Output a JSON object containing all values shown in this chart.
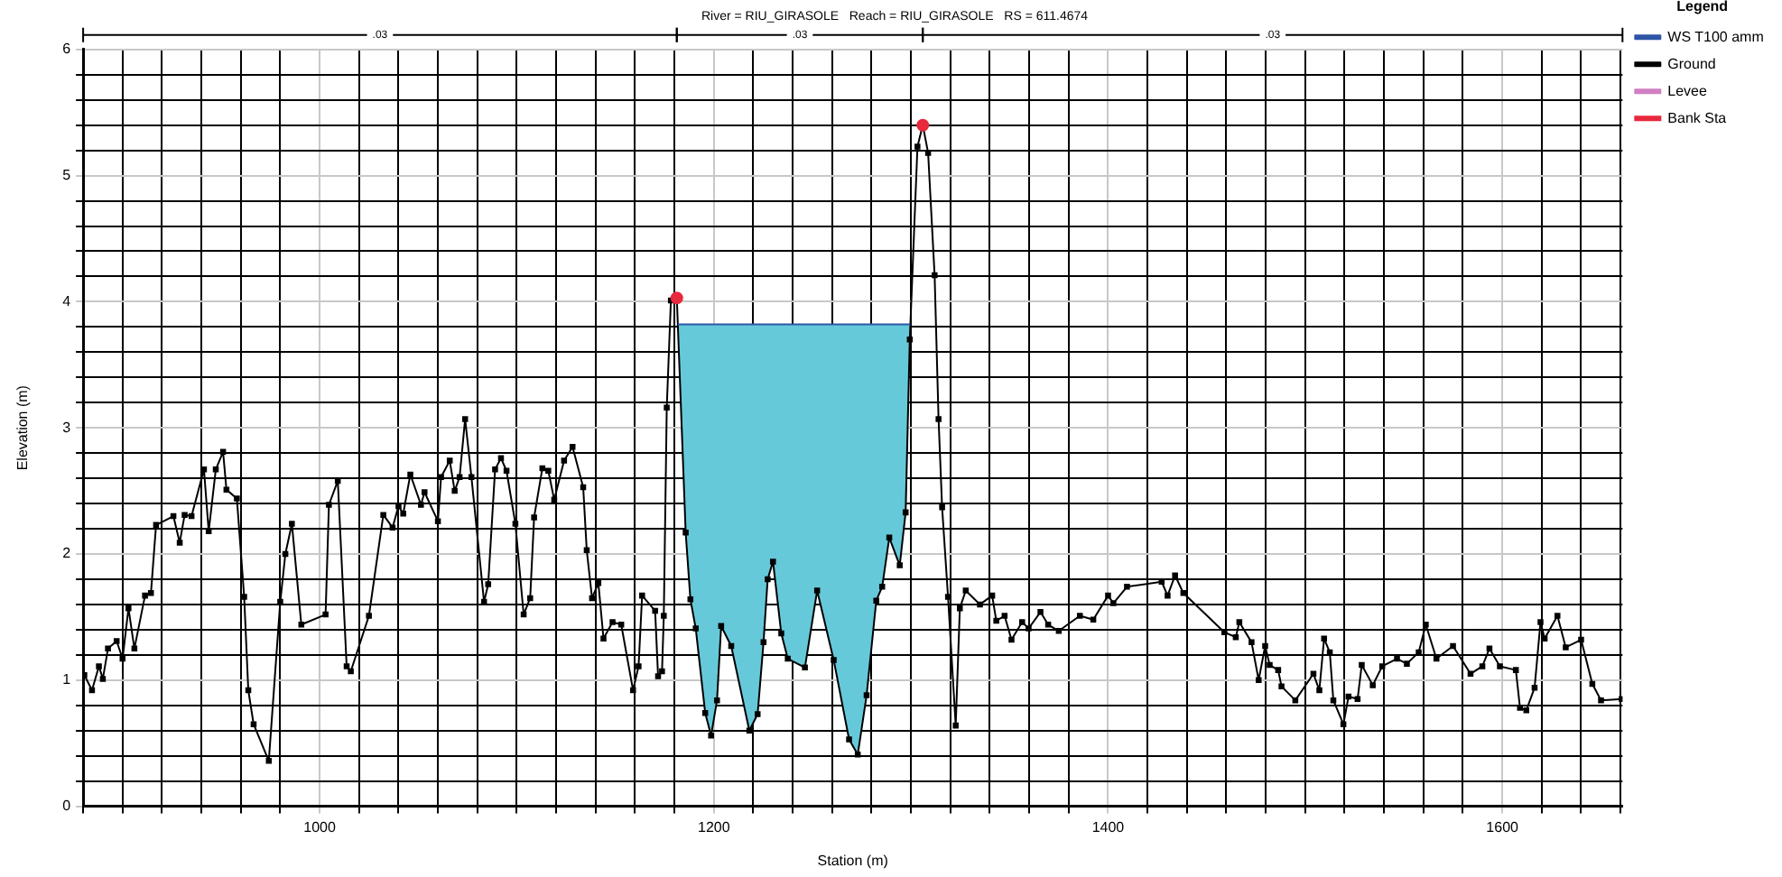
{
  "chart_data": {
    "type": "line",
    "title": "River = RIU_GIRASOLE   Reach = RIU_GIRASOLE   RS = 611.4674",
    "xlabel": "Station (m)",
    "ylabel": "Elevation (m)",
    "legend_title": "Legend",
    "legend": "right",
    "grid": true,
    "xlim": [
      880,
      1661
    ],
    "ylim": [
      0,
      6
    ],
    "xticks": [
      {
        "value": 880,
        "label": null
      },
      {
        "value": 900,
        "label": null
      },
      {
        "value": 920,
        "label": null
      },
      {
        "value": 940,
        "label": null
      },
      {
        "value": 960,
        "label": null
      },
      {
        "value": 980,
        "label": null
      },
      1000,
      {
        "value": 1020,
        "label": null
      },
      {
        "value": 1040,
        "label": null
      },
      {
        "value": 1060,
        "label": null
      },
      {
        "value": 1080,
        "label": null
      },
      {
        "value": 1100,
        "label": null
      },
      {
        "value": 1120,
        "label": null
      },
      {
        "value": 1140,
        "label": null
      },
      {
        "value": 1160,
        "label": null
      },
      {
        "value": 1180,
        "label": null
      },
      1200,
      {
        "value": 1220,
        "label": null
      },
      {
        "value": 1240,
        "label": null
      },
      {
        "value": 1260,
        "label": null
      },
      {
        "value": 1280,
        "label": null
      },
      {
        "value": 1300,
        "label": null
      },
      {
        "value": 1320,
        "label": null
      },
      {
        "value": 1340,
        "label": null
      },
      {
        "value": 1360,
        "label": null
      },
      {
        "value": 1380,
        "label": null
      },
      1400,
      {
        "value": 1420,
        "label": null
      },
      {
        "value": 1440,
        "label": null
      },
      {
        "value": 1460,
        "label": null
      },
      {
        "value": 1480,
        "label": null
      },
      {
        "value": 1500,
        "label": null
      },
      {
        "value": 1520,
        "label": null
      },
      {
        "value": 1540,
        "label": null
      },
      {
        "value": 1560,
        "label": null
      },
      {
        "value": 1580,
        "label": null
      },
      1600,
      {
        "value": 1620,
        "label": null
      },
      {
        "value": 1640,
        "label": null
      },
      {
        "value": 1660,
        "label": null
      }
    ],
    "yticks": [
      0,
      {
        "value": 0.2,
        "label": null
      },
      {
        "value": 0.4,
        "label": null
      },
      {
        "value": 0.6,
        "label": null
      },
      {
        "value": 0.8,
        "label": null
      },
      1,
      {
        "value": 1.2,
        "label": null
      },
      {
        "value": 1.4,
        "label": null
      },
      {
        "value": 1.6,
        "label": null
      },
      {
        "value": 1.8,
        "label": null
      },
      2,
      {
        "value": 2.2,
        "label": null
      },
      {
        "value": 2.4,
        "label": null
      },
      {
        "value": 2.6,
        "label": null
      },
      {
        "value": 2.8,
        "label": null
      },
      3,
      {
        "value": 3.2,
        "label": null
      },
      {
        "value": 3.4,
        "label": null
      },
      {
        "value": 3.6,
        "label": null
      },
      {
        "value": 3.8,
        "label": null
      },
      4,
      {
        "value": 4.2,
        "label": null
      },
      {
        "value": 4.4,
        "label": null
      },
      {
        "value": 4.6,
        "label": null
      },
      {
        "value": 4.8,
        "label": null
      },
      5,
      {
        "value": 5.2,
        "label": null
      },
      {
        "value": 5.4,
        "label": null
      },
      {
        "value": 5.6,
        "label": null
      },
      {
        "value": 5.8,
        "label": null
      },
      6
    ],
    "annotations": [
      ".03",
      ".03",
      ".03"
    ],
    "series": [
      {
        "name": "WS T100 amm",
        "type": "line",
        "marker": "none",
        "color": "#2e56a6",
        "x": [
          1181.7,
          1185.7,
          1188.1,
          1190.8,
          1195.6,
          1198.6,
          1201.6,
          1203.7,
          1208.8,
          1218,
          1222.2,
          1225.2,
          1227.3,
          1230,
          1234.2,
          1237.5,
          1246.2,
          1252.4,
          1260.8,
          1268.6,
          1273,
          1277.5,
          1282.4,
          1285.4,
          1289,
          1294.3,
          1297.3,
          1299.4,
          1299.7
        ],
        "values": [
          3.82,
          3.82,
          3.82,
          3.82,
          3.82,
          3.82,
          3.82,
          3.82,
          3.82,
          3.82,
          3.82,
          3.82,
          3.82,
          3.82,
          3.82,
          3.82,
          3.82,
          3.82,
          3.82,
          3.82,
          3.82,
          3.82,
          3.82,
          3.82,
          3.82,
          3.82,
          3.82,
          3.82,
          3.82
        ],
        "upper": [
          3.82,
          3.82,
          3.82,
          3.82,
          3.82,
          3.82,
          3.82,
          3.82,
          3.82,
          3.82,
          3.82,
          3.82,
          3.82,
          3.82,
          3.82,
          3.82,
          3.82,
          3.82,
          3.82,
          3.82,
          3.82,
          3.82,
          3.82,
          3.82,
          3.82,
          3.82,
          3.82,
          3.82,
          3.82
        ],
        "lower": [
          3.82,
          2.17,
          1.64,
          1.41,
          0.74,
          0.56,
          0.84,
          1.43,
          1.27,
          0.6,
          0.73,
          1.3,
          1.8,
          1.94,
          1.37,
          1.17,
          1.1,
          1.71,
          1.16,
          0.53,
          0.41,
          0.88,
          1.63,
          1.74,
          2.13,
          1.91,
          2.33,
          3.7,
          3.82
        ]
      },
      {
        "name": "Ground",
        "type": "line",
        "marker": "square",
        "color": "#000000",
        "x": [
          880.6,
          884.5,
          888,
          890,
          892.6,
          897,
          900,
          903,
          906,
          911.4,
          914.4,
          917,
          925.8,
          929,
          931.5,
          935,
          941.3,
          943.7,
          947.3,
          951,
          952.7,
          958,
          961.7,
          963.8,
          966.5,
          974.2,
          980,
          982.6,
          985.9,
          990.7,
          1003,
          1004.7,
          1009.2,
          1013.7,
          1015.8,
          1025,
          1032.3,
          1037,
          1040,
          1042.4,
          1046,
          1051.4,
          1053.2,
          1060,
          1061.6,
          1066,
          1068.5,
          1071,
          1073.8,
          1077,
          1083.4,
          1085.5,
          1089,
          1092,
          1094.8,
          1099.3,
          1103.5,
          1106.8,
          1108.8,
          1113,
          1116,
          1119,
          1124,
          1128.3,
          1133.7,
          1135.5,
          1138.2,
          1141.4,
          1144,
          1148.6,
          1153,
          1159,
          1161.8,
          1163.6,
          1170.2,
          1171.7,
          1173.7,
          1174.6,
          1176.1,
          1178.2,
          1181.2,
          1185.7,
          1188.1,
          1190.8,
          1195.6,
          1198.6,
          1201.6,
          1203.7,
          1208.8,
          1218,
          1222.2,
          1225.2,
          1227.3,
          1230,
          1234.2,
          1237.5,
          1246.2,
          1252.4,
          1260.8,
          1268.6,
          1273,
          1277.5,
          1282.4,
          1285.4,
          1289,
          1294.3,
          1297.3,
          1299.4,
          1303.3,
          1306,
          1308.7,
          1312,
          1314,
          1315.8,
          1318.8,
          1322.7,
          1324.8,
          1327.8,
          1335,
          1341.2,
          1343.3,
          1347.5,
          1351,
          1356.4,
          1359.7,
          1365.7,
          1369.6,
          1375,
          1385.7,
          1392.5,
          1400,
          1402.7,
          1409.6,
          1427.2,
          1430.2,
          1434,
          1438.2,
          1459,
          1464.8,
          1466.6,
          1472.8,
          1476.4,
          1479.7,
          1482,
          1486.3,
          1488,
          1495,
          1504.2,
          1507.2,
          1509.6,
          1512.5,
          1514.3,
          1519.4,
          1522,
          1526.6,
          1528.7,
          1534.3,
          1539.1,
          1546.6,
          1551.6,
          1557.6,
          1561.2,
          1566.6,
          1575,
          1583.9,
          1589.9,
          1593.5,
          1598.8,
          1606.9,
          1609,
          1612.2,
          1616.4,
          1619.4,
          1621.5,
          1628,
          1632.2,
          1640,
          1645.7,
          1650.1,
          1660.6
        ],
        "values": [
          1.04,
          0.92,
          1.11,
          1.01,
          1.25,
          1.31,
          1.17,
          1.57,
          1.25,
          1.67,
          1.69,
          2.23,
          2.3,
          2.09,
          2.31,
          2.3,
          2.67,
          2.18,
          2.67,
          2.81,
          2.51,
          2.44,
          1.66,
          0.92,
          0.65,
          0.36,
          1.62,
          2,
          2.24,
          1.44,
          1.52,
          2.39,
          2.58,
          1.11,
          1.07,
          1.51,
          2.31,
          2.21,
          2.38,
          2.32,
          2.63,
          2.39,
          2.49,
          2.26,
          2.61,
          2.74,
          2.5,
          2.61,
          3.07,
          2.61,
          1.62,
          1.76,
          2.67,
          2.76,
          2.66,
          2.24,
          1.52,
          1.65,
          2.29,
          2.68,
          2.66,
          2.43,
          2.74,
          2.85,
          2.53,
          2.03,
          1.65,
          1.77,
          1.33,
          1.46,
          1.44,
          0.92,
          1.11,
          1.67,
          1.55,
          1.03,
          1.07,
          1.51,
          3.16,
          4.01,
          4.03,
          2.17,
          1.64,
          1.41,
          0.74,
          0.56,
          0.84,
          1.43,
          1.27,
          0.6,
          0.73,
          1.3,
          1.8,
          1.94,
          1.37,
          1.17,
          1.1,
          1.71,
          1.16,
          0.53,
          0.41,
          0.88,
          1.63,
          1.74,
          2.13,
          1.91,
          2.33,
          3.7,
          5.23,
          5.4,
          5.18,
          4.21,
          3.07,
          2.37,
          1.66,
          0.64,
          1.57,
          1.71,
          1.6,
          1.67,
          1.47,
          1.51,
          1.32,
          1.46,
          1.41,
          1.54,
          1.44,
          1.39,
          1.51,
          1.48,
          1.67,
          1.61,
          1.74,
          1.78,
          1.67,
          1.83,
          1.69,
          1.38,
          1.34,
          1.46,
          1.3,
          1,
          1.27,
          1.12,
          1.08,
          0.95,
          0.84,
          1.05,
          0.92,
          1.33,
          1.22,
          0.84,
          0.65,
          0.87,
          0.85,
          1.12,
          0.96,
          1.11,
          1.17,
          1.13,
          1.22,
          1.44,
          1.17,
          1.27,
          1.05,
          1.11,
          1.25,
          1.11,
          1.08,
          0.78,
          0.76,
          0.94,
          1.46,
          1.33,
          1.51,
          1.26,
          1.32,
          0.97,
          0.84,
          0.85
        ]
      },
      {
        "name": "Levee",
        "marker": "square",
        "color": "#d27fc3"
      },
      {
        "name": "Bank Sta",
        "type": "scatter",
        "marker": "circle",
        "color": "#e8283c",
        "x": [
          1181.2,
          1306
        ],
        "values": [
          4.03,
          5.4
        ]
      }
    ]
  }
}
